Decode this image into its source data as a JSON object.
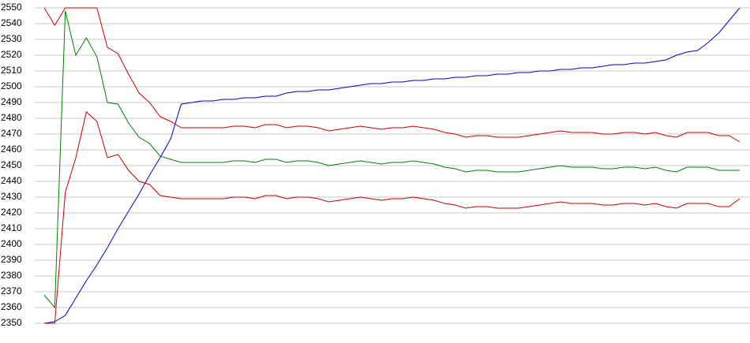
{
  "chart_data": {
    "type": "line",
    "categories": [
      null,
      null,
      null,
      null,
      null,
      null,
      null,
      null,
      null,
      null,
      null,
      null,
      null,
      null,
      null,
      null,
      null,
      null,
      null,
      null,
      null,
      null,
      null,
      null,
      null,
      null,
      null,
      null,
      null,
      null,
      null,
      null,
      null,
      null,
      null,
      null,
      null,
      null,
      null,
      null,
      null,
      null,
      null,
      null,
      null,
      null,
      null,
      null,
      null,
      null,
      null,
      null,
      null,
      null,
      null,
      null,
      null,
      null,
      null,
      null,
      null,
      null,
      null,
      null,
      null,
      null,
      null
    ],
    "ylim": [
      2350,
      2550
    ],
    "yticks": [
      2350,
      2360,
      2370,
      2380,
      2390,
      2400,
      2410,
      2420,
      2430,
      2440,
      2450,
      2460,
      2470,
      2480,
      2490,
      2500,
      2510,
      2520,
      2530,
      2540,
      2550
    ],
    "grid": true,
    "series": [
      {
        "color": "#0000cc",
        "values": [
          2350,
          2351,
          2355,
          2366,
          2377,
          2387,
          2398,
          2410,
          2421,
          2432,
          2444,
          2455,
          2467,
          2489,
          2490,
          2491,
          2491,
          2492,
          2492,
          2493,
          2493,
          2494,
          2494,
          2496,
          2497,
          2497,
          2498,
          2498,
          2499,
          2500,
          2501,
          2502,
          2502,
          2503,
          2503,
          2504,
          2504,
          2505,
          2505,
          2506,
          2506,
          2507,
          2507,
          2508,
          2508,
          2509,
          2509,
          2510,
          2510,
          2511,
          2511,
          2512,
          2512,
          2513,
          2514,
          2514,
          2515,
          2515,
          2516,
          2517,
          2520,
          2522,
          2523,
          2528,
          2534,
          2542,
          2550
        ]
      },
      {
        "color": "#cc0000",
        "values": [
          2550,
          2539,
          2550,
          2550,
          2550,
          2550,
          2525,
          2521,
          2508,
          2496,
          2490,
          2481,
          2478,
          2474,
          2474,
          2474,
          2474,
          2474,
          2475,
          2475,
          2474,
          2476,
          2476,
          2474,
          2475,
          2475,
          2474,
          2472,
          2473,
          2474,
          2475,
          2474,
          2473,
          2474,
          2474,
          2475,
          2474,
          2473,
          2471,
          2470,
          2468,
          2469,
          2469,
          2468,
          2468,
          2468,
          2469,
          2470,
          2471,
          2472,
          2471,
          2471,
          2471,
          2470,
          2470,
          2471,
          2471,
          2470,
          2471,
          2469,
          2468,
          2471,
          2471,
          2471,
          2469,
          2469,
          2465
        ]
      },
      {
        "color": "#008000",
        "values": [
          2368,
          2360,
          2548,
          2520,
          2531,
          2519,
          2490,
          2489,
          2477,
          2468,
          2464,
          2456,
          2454,
          2452,
          2452,
          2452,
          2452,
          2452,
          2453,
          2453,
          2452,
          2454,
          2454,
          2452,
          2453,
          2453,
          2452,
          2450,
          2451,
          2452,
          2453,
          2452,
          2451,
          2452,
          2452,
          2453,
          2452,
          2451,
          2449,
          2448,
          2446,
          2447,
          2447,
          2446,
          2446,
          2446,
          2447,
          2448,
          2449,
          2450,
          2449,
          2449,
          2449,
          2448,
          2448,
          2449,
          2449,
          2448,
          2449,
          2447,
          2446,
          2449,
          2449,
          2449,
          2447,
          2447,
          2447
        ]
      },
      {
        "color": "#cc0000",
        "values": [
          2350,
          2350,
          2433,
          2455,
          2484,
          2478,
          2455,
          2457,
          2447,
          2440,
          2438,
          2431,
          2430,
          2429,
          2429,
          2429,
          2429,
          2429,
          2430,
          2430,
          2429,
          2431,
          2431,
          2429,
          2430,
          2430,
          2429,
          2427,
          2428,
          2429,
          2430,
          2429,
          2428,
          2429,
          2429,
          2430,
          2429,
          2428,
          2426,
          2425,
          2423,
          2424,
          2424,
          2423,
          2423,
          2423,
          2424,
          2425,
          2426,
          2427,
          2426,
          2426,
          2426,
          2425,
          2425,
          2426,
          2426,
          2425,
          2426,
          2424,
          2423,
          2426,
          2426,
          2426,
          2424,
          2424,
          2429
        ]
      }
    ]
  }
}
